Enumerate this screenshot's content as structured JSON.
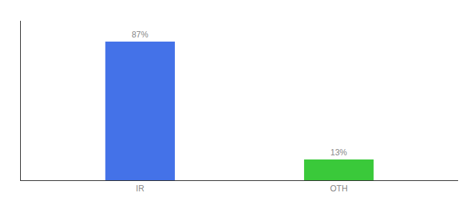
{
  "chart_data": {
    "type": "bar",
    "categories": [
      "IR",
      "OTH"
    ],
    "values": [
      87,
      13
    ],
    "value_labels": [
      "87%",
      "13%"
    ],
    "colors": [
      "#4472e8",
      "#3ac93a"
    ],
    "ylim": [
      0,
      100
    ],
    "yticks": [],
    "grid": false,
    "data_labels": true,
    "tick_labels": "x"
  }
}
